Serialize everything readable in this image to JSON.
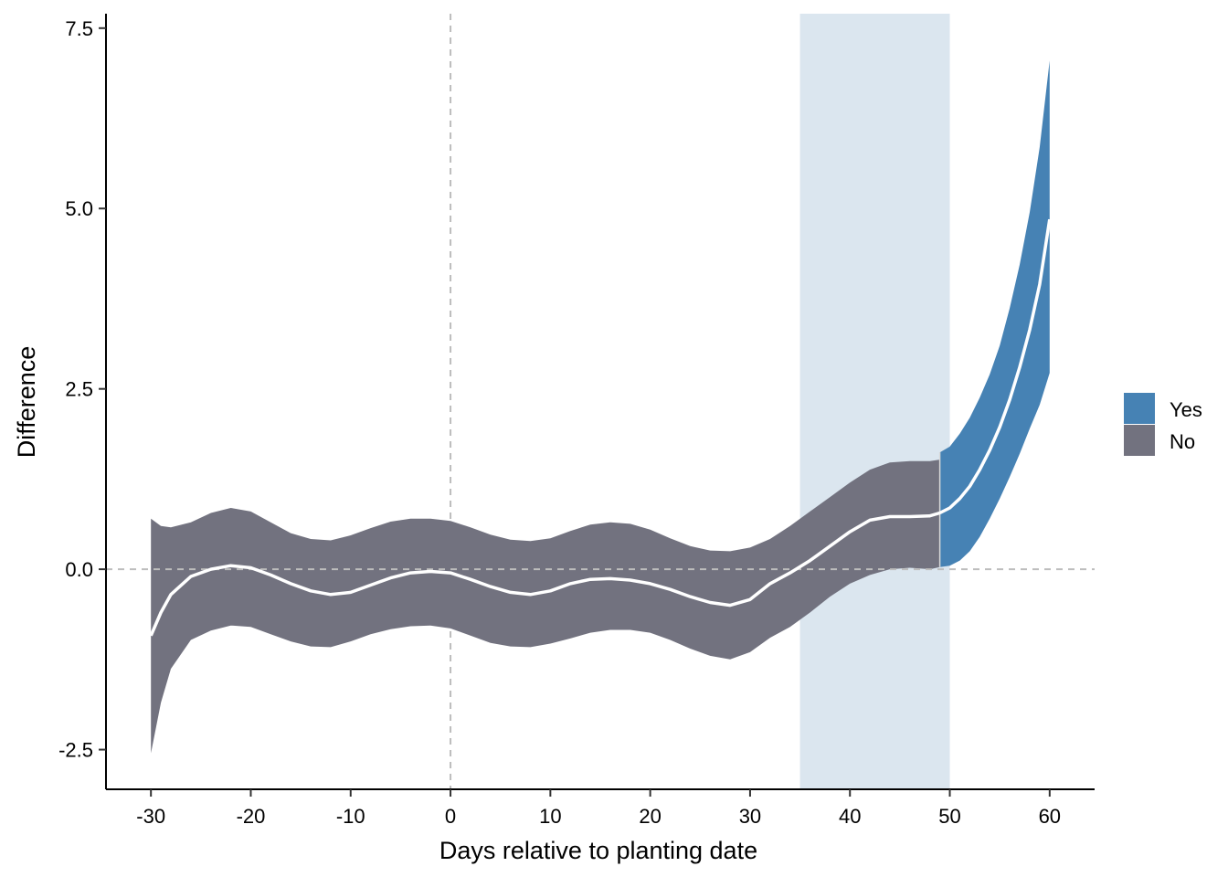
{
  "chart_data": {
    "type": "area",
    "title": "",
    "xlabel": "Days relative to planting date",
    "ylabel": "Difference",
    "xlim": [
      -34.5,
      64.5
    ],
    "ylim": [
      -3.05,
      7.7
    ],
    "x_ticks": [
      -30,
      -20,
      -10,
      0,
      10,
      20,
      30,
      40,
      50,
      60
    ],
    "x_tick_labels": [
      "-30",
      "-20",
      "-10",
      "0",
      "10",
      "20",
      "30",
      "40",
      "50",
      "60"
    ],
    "y_ticks": [
      -2.5,
      0.0,
      2.5,
      5.0,
      7.5
    ],
    "y_tick_labels": [
      "-2.5",
      "0.0",
      "2.5",
      "5.0",
      "7.5"
    ],
    "grid": false,
    "reference_lines": {
      "vertical_x": 0,
      "horizontal_y": 0
    },
    "highlight_band": {
      "x_start": 35,
      "x_end": 50,
      "color": "#dbe6ef"
    },
    "fit_line_color": "#ffffff",
    "legend": {
      "placement": "right",
      "entries": [
        {
          "label": "Yes",
          "color": "#4682b4"
        },
        {
          "label": "No",
          "color": "#72727f"
        }
      ]
    },
    "series": [
      {
        "fill_group": "No",
        "x": [
          -30,
          -29,
          -28,
          -26,
          -24,
          -22,
          -20,
          -18,
          -16,
          -14,
          -12,
          -10,
          -8,
          -6,
          -4,
          -2,
          0,
          2,
          4,
          6,
          8,
          10,
          12,
          14,
          16,
          18,
          20,
          22,
          24,
          26,
          28,
          30,
          32,
          34,
          36,
          38,
          40,
          42,
          44,
          46,
          48,
          49
        ],
        "mean": [
          -0.92,
          -0.6,
          -0.35,
          -0.1,
          0.0,
          0.05,
          0.02,
          -0.08,
          -0.2,
          -0.3,
          -0.35,
          -0.32,
          -0.22,
          -0.12,
          -0.05,
          -0.03,
          -0.05,
          -0.14,
          -0.24,
          -0.32,
          -0.35,
          -0.3,
          -0.2,
          -0.14,
          -0.13,
          -0.15,
          -0.2,
          -0.28,
          -0.38,
          -0.46,
          -0.5,
          -0.42,
          -0.2,
          -0.05,
          0.12,
          0.32,
          0.52,
          0.68,
          0.73,
          0.73,
          0.74,
          0.78
        ],
        "upper": [
          0.7,
          0.6,
          0.58,
          0.65,
          0.78,
          0.85,
          0.8,
          0.65,
          0.5,
          0.42,
          0.4,
          0.47,
          0.57,
          0.66,
          0.7,
          0.7,
          0.67,
          0.58,
          0.48,
          0.41,
          0.39,
          0.43,
          0.53,
          0.62,
          0.65,
          0.63,
          0.55,
          0.43,
          0.32,
          0.26,
          0.25,
          0.3,
          0.42,
          0.6,
          0.8,
          1.0,
          1.2,
          1.38,
          1.48,
          1.5,
          1.5,
          1.52
        ],
        "lower": [
          -2.55,
          -1.85,
          -1.38,
          -0.98,
          -0.85,
          -0.78,
          -0.8,
          -0.9,
          -1.0,
          -1.07,
          -1.08,
          -1.0,
          -0.9,
          -0.83,
          -0.79,
          -0.78,
          -0.82,
          -0.92,
          -1.02,
          -1.07,
          -1.08,
          -1.03,
          -0.96,
          -0.88,
          -0.84,
          -0.84,
          -0.88,
          -0.98,
          -1.1,
          -1.2,
          -1.25,
          -1.15,
          -0.95,
          -0.8,
          -0.6,
          -0.38,
          -0.2,
          -0.08,
          0.0,
          0.02,
          0.0,
          0.03
        ]
      },
      {
        "fill_group": "Yes",
        "x": [
          49,
          50,
          51,
          52,
          53,
          54,
          55,
          56,
          57,
          58,
          59,
          60
        ],
        "mean": [
          0.78,
          0.85,
          0.98,
          1.15,
          1.38,
          1.65,
          1.97,
          2.35,
          2.8,
          3.32,
          3.95,
          4.85
        ],
        "upper": [
          1.62,
          1.7,
          1.88,
          2.1,
          2.38,
          2.7,
          3.1,
          3.62,
          4.22,
          4.95,
          5.85,
          7.05
        ],
        "lower": [
          0.03,
          0.05,
          0.12,
          0.25,
          0.45,
          0.7,
          0.98,
          1.28,
          1.6,
          1.95,
          2.28,
          2.72
        ]
      }
    ]
  }
}
